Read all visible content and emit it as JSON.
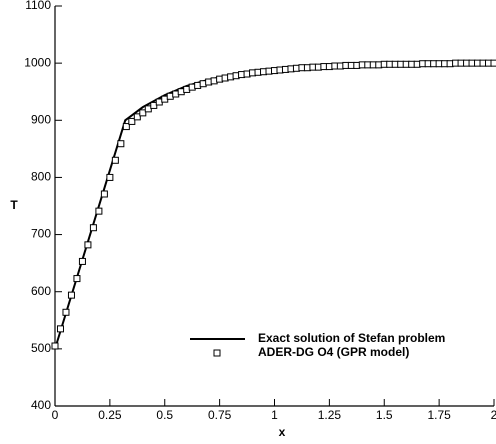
{
  "chart_data": {
    "type": "line",
    "xlabel": "x",
    "ylabel": "T",
    "xlim": [
      0,
      2
    ],
    "ylim": [
      400,
      1100
    ],
    "xticks": [
      0,
      0.25,
      0.5,
      0.75,
      1,
      1.25,
      1.5,
      1.75,
      2
    ],
    "yticks": [
      400,
      500,
      600,
      700,
      800,
      900,
      1000,
      1100
    ],
    "grid": false,
    "legend": "lower right",
    "series": [
      {
        "name": "Exact solution of Stefan problem",
        "type": "line",
        "color": "#000000",
        "x": [
          0,
          0.32,
          0.4,
          0.5,
          0.6,
          0.7,
          0.8,
          0.9,
          1.0,
          1.2,
          1.4,
          1.6,
          1.8,
          2.0
        ],
        "values": [
          500,
          900,
          923,
          944,
          960,
          971,
          979,
          985,
          989,
          994,
          997,
          998,
          999,
          1000
        ]
      },
      {
        "name": "ADER-DG O4 (GPR model)",
        "type": "scatter",
        "marker": "square",
        "color": "#000000",
        "x": [
          0,
          0.025,
          0.05,
          0.075,
          0.1,
          0.125,
          0.15,
          0.175,
          0.2,
          0.225,
          0.25,
          0.275,
          0.3,
          0.325,
          0.35,
          0.375,
          0.4,
          0.425,
          0.45,
          0.475,
          0.5,
          0.525,
          0.55,
          0.575,
          0.6,
          0.625,
          0.65,
          0.675,
          0.7,
          0.725,
          0.75,
          0.775,
          0.8,
          0.825,
          0.85,
          0.875,
          0.9,
          0.925,
          0.95,
          0.975,
          1.0,
          1.025,
          1.05,
          1.075,
          1.1,
          1.125,
          1.15,
          1.175,
          1.2,
          1.225,
          1.25,
          1.275,
          1.3,
          1.325,
          1.35,
          1.375,
          1.4,
          1.425,
          1.45,
          1.475,
          1.5,
          1.525,
          1.55,
          1.575,
          1.6,
          1.625,
          1.65,
          1.675,
          1.7,
          1.725,
          1.75,
          1.775,
          1.8,
          1.825,
          1.85,
          1.875,
          1.9,
          1.925,
          1.95,
          1.975,
          2.0
        ],
        "values": [
          505,
          535,
          564,
          594,
          623,
          653,
          682,
          712,
          741,
          771,
          800,
          830,
          859,
          889,
          898,
          906,
          913,
          920,
          926,
          932,
          937,
          942,
          946,
          950,
          954,
          958,
          961,
          964,
          967,
          969,
          972,
          974,
          976,
          978,
          980,
          981,
          983,
          984,
          985,
          986,
          987,
          988,
          989,
          990,
          991,
          992,
          992,
          993,
          993,
          994,
          994,
          995,
          995,
          996,
          996,
          996,
          997,
          997,
          997,
          997,
          998,
          998,
          998,
          998,
          998,
          998,
          998,
          999,
          999,
          999,
          999,
          999,
          999,
          1000,
          1000,
          1000,
          1000,
          1000,
          1000,
          1000,
          1000
        ]
      }
    ]
  }
}
